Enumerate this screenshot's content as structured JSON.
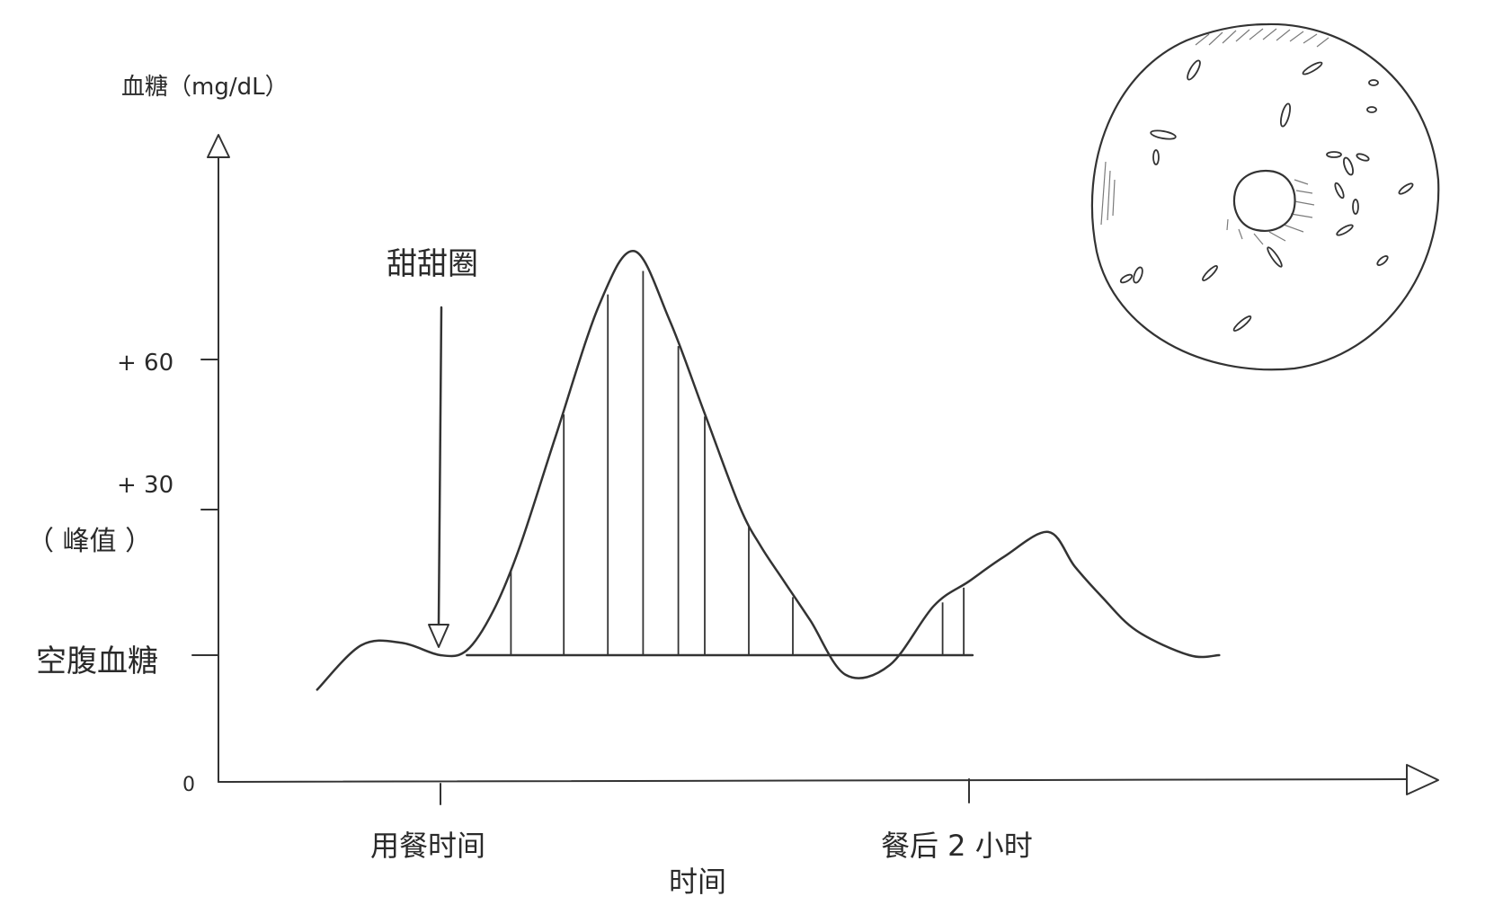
{
  "chart_data": {
    "type": "area",
    "title": "",
    "ylabel": "血糖（mg/dL）",
    "xlabel": "时间",
    "yticks": [
      {
        "value": 0,
        "label": "0"
      },
      {
        "value": 30,
        "label": "+ 30"
      },
      {
        "value": 60,
        "label": "+ 60"
      }
    ],
    "y_note": "（ 峰值 ）",
    "baseline_label": "空腹血糖",
    "xticks": [
      {
        "key": "meal",
        "label": "用餐时间"
      },
      {
        "key": "two_hours",
        "label": "餐后 2 小时"
      }
    ],
    "annotation": {
      "label": "甜甜圈",
      "target": "meal"
    },
    "series": [
      {
        "values": [
          0,
          1,
          2,
          3,
          4,
          5,
          6,
          7,
          8,
          9,
          10,
          11,
          12,
          13,
          14,
          15,
          16,
          17,
          18,
          19,
          20,
          21,
          22,
          23,
          24,
          25,
          26
        ],
        "x": [
          -0.7,
          -0.45,
          -0.22,
          0,
          0.15,
          0.3,
          0.45,
          0.65,
          0.9,
          1.1,
          1.3,
          1.5,
          1.7,
          1.82,
          1.95,
          2.1,
          2.3,
          2.55,
          2.8,
          3.0,
          3.2,
          3.45,
          3.6,
          3.75,
          3.95,
          4.25,
          4.42
        ],
        "y": [
          -7,
          2,
          2.5,
          0,
          1,
          9,
          22,
          44,
          71,
          82,
          68,
          49,
          30,
          22,
          15,
          7,
          -4,
          -2,
          10,
          15,
          20,
          25,
          18,
          12,
          5,
          0,
          0
        ]
      }
    ],
    "fasting_level": 0,
    "shaded_area_between": [
      "meal",
      "two_hours"
    ],
    "axis_ranges": {
      "x": [
        -1,
        4.5
      ],
      "y": [
        -25,
        95
      ]
    },
    "grid": false,
    "legend": "none"
  },
  "decoration": {
    "icon": "donut-icon"
  }
}
